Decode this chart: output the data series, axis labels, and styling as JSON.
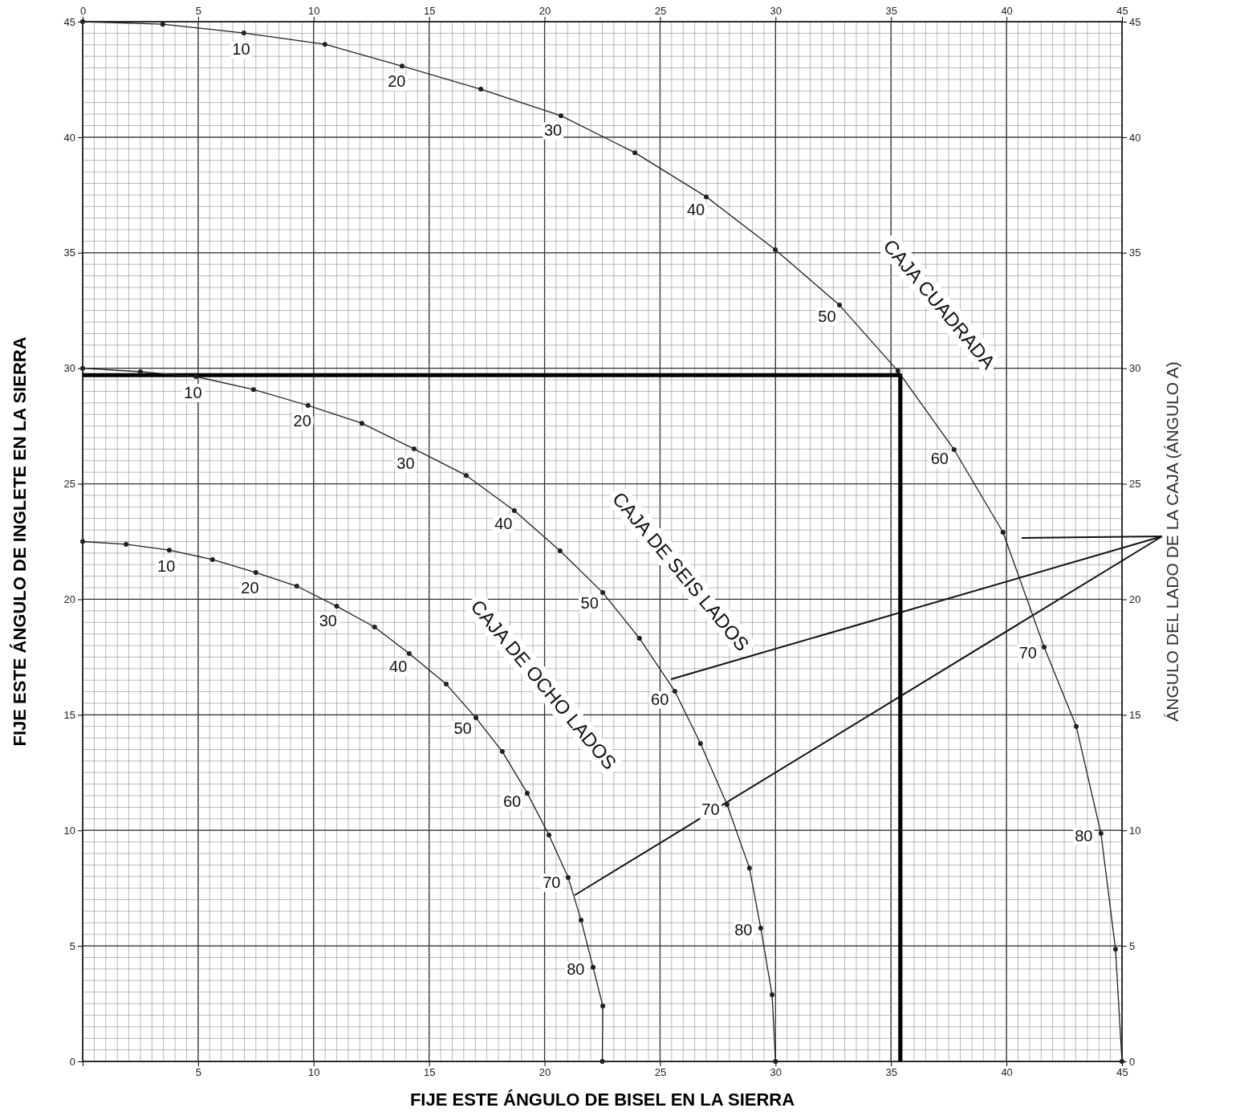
{
  "chart_data": {
    "type": "line",
    "xlabel": "FIJE ESTE ÁNGULO DE BISEL EN LA SIERRA",
    "ylabel": "FIJE ESTE ÁNGULO DE INGLETE EN LA SIERRA",
    "y2label": "ÁNGULO DEL LADO DE LA CAJA (ÁNGULO A)",
    "xlim": [
      0,
      45
    ],
    "ylim": [
      0,
      45
    ],
    "y2lim": [
      0,
      45
    ],
    "x2lim": [
      0,
      45
    ],
    "xticks": [
      {
        "value": 0,
        "label": null
      },
      5,
      10,
      15,
      20,
      25,
      30,
      35,
      40,
      45
    ],
    "yticks": [
      0,
      5,
      10,
      15,
      20,
      25,
      30,
      35,
      40,
      45
    ],
    "y2ticks": [
      0,
      5,
      10,
      15,
      20,
      25,
      30,
      35,
      40,
      45
    ],
    "x2ticks": [
      0,
      5,
      10,
      15,
      20,
      25,
      30,
      35,
      40,
      45
    ],
    "grid": true,
    "marker": "circle",
    "line_style": "solid",
    "series": [
      {
        "name": "CAJA CUADRADA",
        "color": "#231f20",
        "x": [
          0,
          3.47,
          6.98,
          10.49,
          13.83,
          17.24,
          20.71,
          23.91,
          27.0,
          29.99,
          32.77,
          35.3,
          37.73,
          39.85,
          41.63,
          43.02,
          44.09,
          44.72,
          45
        ],
        "values": [
          45,
          44.89,
          44.51,
          44.02,
          43.08,
          42.08,
          40.93,
          39.33,
          37.42,
          35.13,
          32.73,
          29.88,
          26.48,
          22.9,
          17.93,
          14.5,
          9.87,
          4.86,
          0
        ]
      },
      {
        "name": "CAJA DE SEIS LADOS",
        "color": "#231f20",
        "x": [
          0,
          2.5,
          4.9,
          7.4,
          9.76,
          12.09,
          14.35,
          16.61,
          18.69,
          20.67,
          22.52,
          24.11,
          25.64,
          26.75,
          27.9,
          28.87,
          29.36,
          29.85,
          30
        ],
        "values": [
          30,
          29.85,
          29.64,
          29.08,
          28.39,
          27.62,
          26.51,
          25.36,
          23.84,
          22.1,
          20.29,
          18.31,
          16.02,
          13.76,
          11.12,
          8.37,
          5.77,
          2.88,
          0
        ]
      },
      {
        "name": "CAJA DE OCHO LADOS",
        "color": "#231f20",
        "x": [
          0,
          1.88,
          3.75,
          5.62,
          7.5,
          9.27,
          11.0,
          12.64,
          14.14,
          15.74,
          17.03,
          18.17,
          19.25,
          20.19,
          21.02,
          21.58,
          22.1,
          22.52,
          22.5
        ],
        "values": [
          22.5,
          22.38,
          22.13,
          21.72,
          21.16,
          20.57,
          19.7,
          18.8,
          17.65,
          16.33,
          14.87,
          13.41,
          11.61,
          9.8,
          7.96,
          6.12,
          4.07,
          2.4,
          0
        ]
      },
      {
        "color": "#000000",
        "marker": "none",
        "x": [
          0,
          35.4,
          35.4
        ],
        "values": [
          29.7,
          29.7,
          0
        ]
      }
    ],
    "annotations": [
      {
        "text": "10",
        "x": 6.98,
        "y": 44.51
      },
      {
        "text": "20",
        "x": 13.83,
        "y": 43.08
      },
      {
        "text": "30",
        "x": 20.71,
        "y": 40.93
      },
      {
        "text": "40",
        "x": 27.0,
        "y": 37.42
      },
      {
        "text": "50",
        "x": 32.77,
        "y": 32.73
      },
      {
        "text": "60",
        "x": 37.73,
        "y": 26.48
      },
      {
        "text": "70",
        "x": 41.63,
        "y": 17.93
      },
      {
        "text": "80",
        "x": 44.09,
        "y": 9.87
      },
      {
        "text": "10",
        "x": 4.9,
        "y": 29.64
      },
      {
        "text": "20",
        "x": 9.76,
        "y": 28.39
      },
      {
        "text": "30",
        "x": 14.35,
        "y": 26.51
      },
      {
        "text": "40",
        "x": 18.69,
        "y": 23.84
      },
      {
        "text": "50",
        "x": 22.52,
        "y": 20.29
      },
      {
        "text": "60",
        "x": 25.64,
        "y": 16.02
      },
      {
        "text": "70",
        "x": 27.9,
        "y": 11.12
      },
      {
        "text": "80",
        "x": 29.36,
        "y": 5.77
      },
      {
        "text": "10",
        "x": 3.75,
        "y": 22.13
      },
      {
        "text": "20",
        "x": 7.5,
        "y": 21.16
      },
      {
        "text": "30",
        "x": 11.0,
        "y": 19.7
      },
      {
        "text": "40",
        "x": 14.14,
        "y": 17.65
      },
      {
        "text": "50",
        "x": 17.03,
        "y": 14.87
      },
      {
        "text": "60",
        "x": 19.25,
        "y": 11.61
      },
      {
        "text": "70",
        "x": 21.02,
        "y": 7.96
      },
      {
        "text": "80",
        "x": 22.1,
        "y": 4.07
      }
    ]
  }
}
